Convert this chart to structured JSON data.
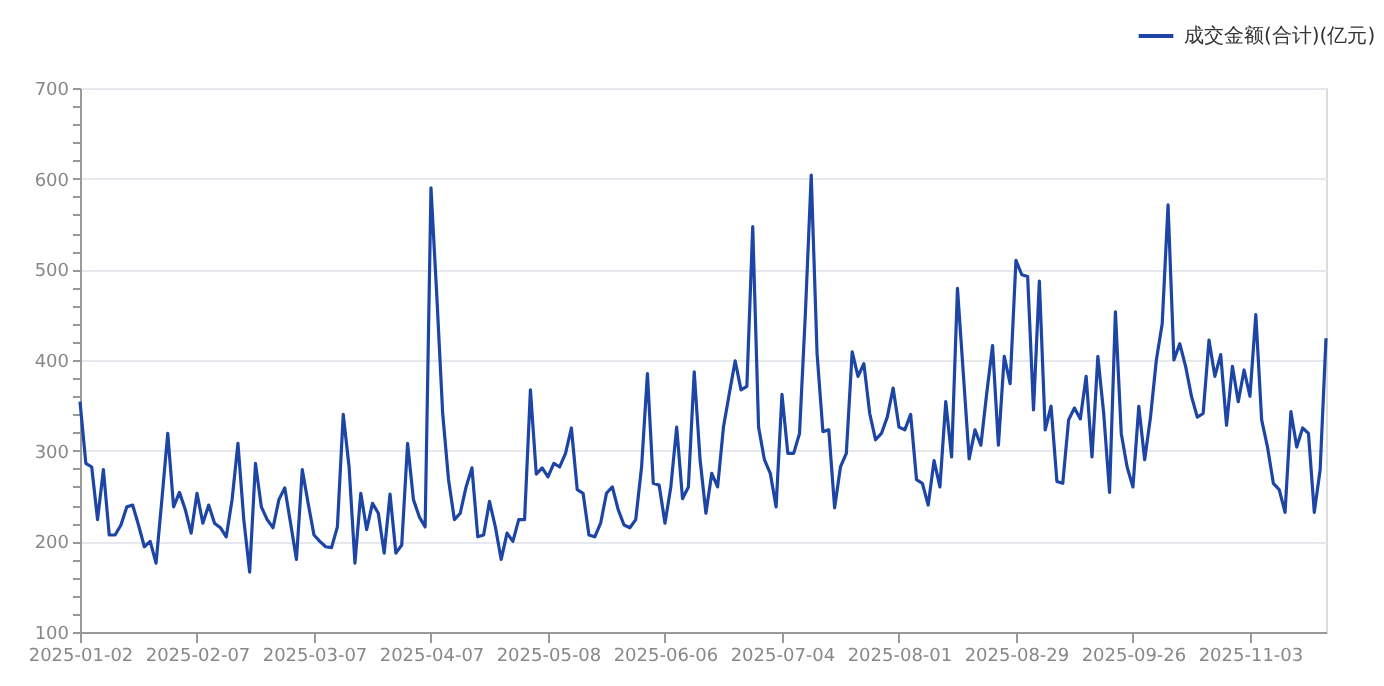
{
  "chart_data": {
    "type": "line",
    "categories": [
      "2025-01-02",
      null,
      null,
      null,
      null,
      null,
      null,
      null,
      null,
      null,
      null,
      null,
      null,
      null,
      null,
      null,
      null,
      null,
      null,
      null,
      "2025-02-07",
      null,
      null,
      null,
      null,
      null,
      null,
      null,
      null,
      null,
      null,
      null,
      null,
      null,
      null,
      null,
      null,
      null,
      null,
      null,
      "2025-03-07",
      null,
      null,
      null,
      null,
      null,
      null,
      null,
      null,
      null,
      null,
      null,
      null,
      null,
      null,
      null,
      null,
      null,
      null,
      null,
      "2025-04-07",
      null,
      null,
      null,
      null,
      null,
      null,
      null,
      null,
      null,
      null,
      null,
      null,
      null,
      null,
      null,
      null,
      null,
      null,
      null,
      "2025-05-08",
      null,
      null,
      null,
      null,
      null,
      null,
      null,
      null,
      null,
      null,
      null,
      null,
      null,
      null,
      null,
      null,
      null,
      null,
      null,
      "2025-06-06",
      null,
      null,
      null,
      null,
      null,
      null,
      null,
      null,
      null,
      null,
      null,
      null,
      null,
      null,
      null,
      null,
      null,
      null,
      null,
      "2025-07-04",
      null,
      null,
      null,
      null,
      null,
      null,
      null,
      null,
      null,
      null,
      null,
      null,
      null,
      null,
      null,
      null,
      null,
      null,
      null,
      "2025-08-01",
      null,
      null,
      null,
      null,
      null,
      null,
      null,
      null,
      null,
      null,
      null,
      null,
      null,
      null,
      null,
      null,
      null,
      null,
      null,
      "2025-08-29",
      null,
      null,
      null,
      null,
      null,
      null,
      null,
      null,
      null,
      null,
      null,
      null,
      null,
      null,
      null,
      null,
      null,
      null,
      null,
      "2025-09-26",
      null,
      null,
      null,
      null,
      null,
      null,
      null,
      null,
      null,
      null,
      null,
      null,
      null,
      null,
      null,
      null,
      null,
      null,
      null,
      "2025-11-03",
      null,
      null,
      null,
      null,
      null,
      null,
      null,
      null,
      null,
      null,
      null,
      null,
      null
    ],
    "series": [
      {
        "name": "成交金额(合计)(亿元)",
        "color": "#1c45a6",
        "values": [
          354,
          286,
          282,
          224,
          279,
          207,
          207,
          218,
          238,
          240,
          218,
          194,
          200,
          176,
          246,
          319,
          238,
          254,
          235,
          209,
          253,
          220,
          240,
          220,
          215,
          205,
          246,
          308,
          224,
          166,
          286,
          238,
          224,
          215,
          246,
          259,
          220,
          180,
          279,
          242,
          207,
          200,
          194,
          193,
          216,
          340,
          282,
          176,
          253,
          213,
          242,
          231,
          187,
          252,
          187,
          196,
          308,
          246,
          227,
          216,
          590,
          470,
          341,
          268,
          224,
          231,
          260,
          281,
          205,
          207,
          244,
          216,
          180,
          209,
          200,
          224,
          224,
          367,
          274,
          281,
          271,
          286,
          282,
          297,
          325,
          257,
          253,
          207,
          205,
          220,
          253,
          260,
          235,
          218,
          215,
          224,
          282,
          385,
          264,
          262,
          220,
          260,
          326,
          247,
          260,
          387,
          290,
          231,
          275,
          260,
          326,
          363,
          399,
          367,
          371,
          547,
          326,
          290,
          275,
          238,
          362,
          297,
          297,
          319,
          451,
          604,
          407,
          321,
          323,
          237,
          282,
          297,
          409,
          382,
          396,
          341,
          312,
          319,
          337,
          369,
          326,
          323,
          340,
          268,
          264,
          240,
          289,
          260,
          354,
          293,
          479,
          385,
          291,
          323,
          306,
          363,
          416,
          306,
          404,
          374,
          510,
          494,
          492,
          345,
          487,
          323,
          349,
          266,
          264,
          334,
          347,
          335,
          382,
          293,
          404,
          341,
          254,
          453,
          319,
          282,
          260,
          349,
          290,
          337,
          400,
          440,
          571,
          400,
          418,
          393,
          360,
          337,
          341,
          422,
          382,
          406,
          328,
          393,
          354,
          389,
          360,
          450,
          334,
          304,
          264,
          257,
          232,
          343,
          304,
          325,
          319,
          232,
          279,
          424
        ]
      }
    ],
    "ylim": [
      100,
      700
    ],
    "yticks": [
      100,
      {
        "value": 120,
        "label": null
      },
      {
        "value": 140,
        "label": null
      },
      {
        "value": 160,
        "label": null
      },
      {
        "value": 180,
        "label": null
      },
      200,
      {
        "value": 220,
        "label": null
      },
      {
        "value": 240,
        "label": null
      },
      {
        "value": 260,
        "label": null
      },
      {
        "value": 280,
        "label": null
      },
      300,
      {
        "value": 320,
        "label": null
      },
      {
        "value": 340,
        "label": null
      },
      {
        "value": 360,
        "label": null
      },
      {
        "value": 380,
        "label": null
      },
      400,
      {
        "value": 420,
        "label": null
      },
      {
        "value": 440,
        "label": null
      },
      {
        "value": 460,
        "label": null
      },
      {
        "value": 480,
        "label": null
      },
      500,
      {
        "value": 520,
        "label": null
      },
      {
        "value": 540,
        "label": null
      },
      {
        "value": 560,
        "label": null
      },
      {
        "value": 580,
        "label": null
      },
      600,
      {
        "value": 620,
        "label": null
      },
      {
        "value": 640,
        "label": null
      },
      {
        "value": 660,
        "label": null
      },
      {
        "value": 680,
        "label": null
      },
      700
    ],
    "grid": "y",
    "legend": "top right",
    "marker": "none",
    "line_style": "solid"
  }
}
